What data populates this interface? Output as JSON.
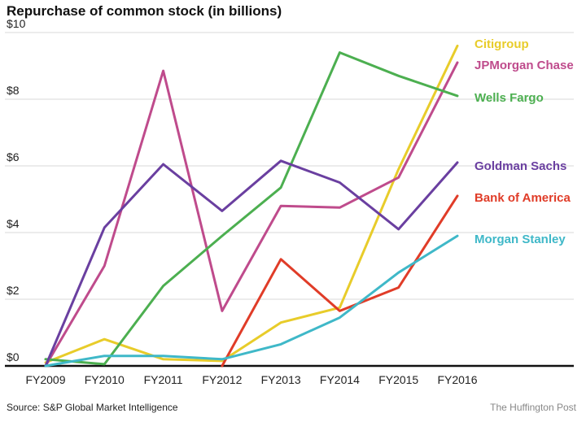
{
  "title": "Repurchase of common stock (in billions)",
  "source": "Source: S&P Global Market Intelligence",
  "credit": "The Huffington Post",
  "chart_data": {
    "type": "line",
    "title": "Repurchase of common stock (in billions)",
    "xlabel": "",
    "ylabel": "",
    "categories": [
      "FY2009",
      "FY2010",
      "FY2011",
      "FY2012",
      "FY2013",
      "FY2014",
      "FY2015",
      "FY2016"
    ],
    "y_ticks": [
      0,
      2,
      4,
      6,
      8,
      10
    ],
    "y_tick_labels": [
      "$0",
      "$2",
      "$4",
      "$6",
      "$8",
      "$10"
    ],
    "ylim": [
      0,
      10
    ],
    "grid": true,
    "legend": "direct labels at right end of lines",
    "series": [
      {
        "name": "Citigroup",
        "color": "#e8cc2a",
        "values": [
          0.1,
          0.8,
          0.2,
          0.15,
          1.3,
          1.75,
          5.9,
          9.6
        ]
      },
      {
        "name": "JPMorgan Chase",
        "color": "#bf4b8c",
        "values": [
          0.0,
          3.0,
          8.85,
          1.65,
          4.8,
          4.75,
          5.65,
          9.1
        ]
      },
      {
        "name": "Wells Fargo",
        "color": "#4caf50",
        "values": [
          0.2,
          0.05,
          2.4,
          3.9,
          5.35,
          9.4,
          8.7,
          8.1
        ]
      },
      {
        "name": "Goldman Sachs",
        "color": "#6a3fa0",
        "values": [
          0.0,
          4.15,
          6.05,
          4.65,
          6.15,
          5.5,
          4.1,
          6.1
        ]
      },
      {
        "name": "Bank of America",
        "color": "#e03c28",
        "values": [
          null,
          null,
          null,
          0.0,
          3.2,
          1.65,
          2.35,
          5.1
        ]
      },
      {
        "name": "Morgan Stanley",
        "color": "#3fb8c8",
        "values": [
          0.0,
          0.3,
          0.3,
          0.2,
          0.65,
          1.45,
          2.8,
          3.9
        ]
      }
    ]
  }
}
